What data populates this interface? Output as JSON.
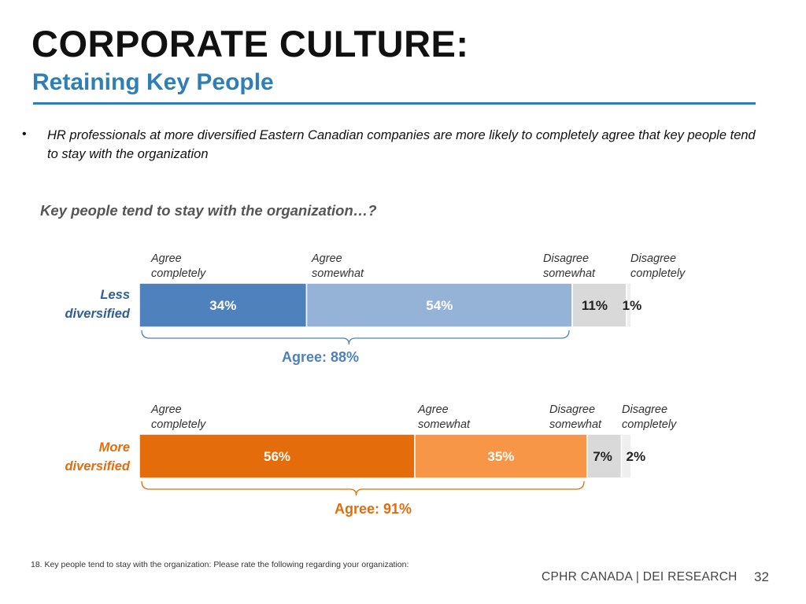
{
  "header": {
    "title": "CORPORATE CULTURE:",
    "subtitle": "Retaining Key People"
  },
  "bullet": {
    "dot": "•",
    "text": "HR professionals at more diversified Eastern Canadian companies are more likely to completely agree that key people tend to stay with the organization"
  },
  "question": "Key people tend to stay with the organization…?",
  "chart_data": {
    "type": "bar",
    "orientation": "horizontal-stacked-100",
    "categories": [
      "Agree completely",
      "Agree somewhat",
      "Disagree somewhat",
      "Disagree completely"
    ],
    "groups": [
      {
        "label": "Less diversified",
        "label_lines": [
          "Less",
          "diversified"
        ],
        "values": [
          34,
          54,
          11,
          1
        ],
        "value_labels": [
          "34%",
          "54%",
          "11%",
          "1%"
        ],
        "colors": [
          "#4f81bd",
          "#95b3d7",
          "#d9d9d9",
          "#efefef"
        ],
        "label_colors": [
          "#ffffff",
          "#ffffff",
          "#222222",
          "#222222"
        ],
        "label_color": "#2f5f9a",
        "category_labels": [
          [
            "Agree",
            "completely"
          ],
          [
            "Agree",
            "somewhat"
          ],
          [
            "Disagree",
            "somewhat"
          ],
          [
            "Disagree",
            "completely"
          ]
        ],
        "agree_total": "Agree: 88%",
        "agree_color": "#4f81bd"
      },
      {
        "label": "More diversified",
        "label_lines": [
          "More",
          "diversified"
        ],
        "values": [
          56,
          35,
          7,
          2
        ],
        "value_labels": [
          "56%",
          "35%",
          "7%",
          "2%"
        ],
        "colors": [
          "#e46c0a",
          "#f79646",
          "#d9d9d9",
          "#efefef"
        ],
        "label_colors": [
          "#ffffff",
          "#ffffff",
          "#222222",
          "#222222"
        ],
        "label_color": "#e46c0a",
        "category_labels": [
          [
            "Agree",
            "completely"
          ],
          [
            "Agree",
            "somewhat"
          ],
          [
            "Disagree",
            "somewhat"
          ],
          [
            "Disagree",
            "completely"
          ]
        ],
        "agree_total": "Agree: 91%",
        "agree_color": "#e46c0a"
      }
    ]
  },
  "footer": {
    "footnote": "18.  Key people tend to stay with the organization: Please rate the following regarding your organization:",
    "brand": "CPHR CANADA | DEI RESEARCH",
    "page_number": "32"
  }
}
